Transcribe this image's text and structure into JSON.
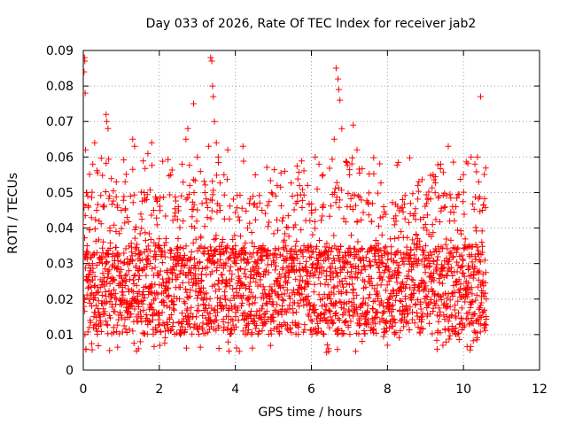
{
  "chart_data": {
    "type": "scatter",
    "title": "Day 033 of 2026, Rate Of TEC Index for receiver jab2",
    "xlabel": "GPS time / hours",
    "ylabel": "ROTI / TECUs",
    "xlim": [
      0,
      12
    ],
    "ylim": [
      0,
      0.09
    ],
    "x_ticks": [
      "0",
      "2",
      "4",
      "6",
      "8",
      "10",
      "12"
    ],
    "y_ticks": [
      "0",
      "0.01",
      "0.02",
      "0.03",
      "0.04",
      "0.05",
      "0.06",
      "0.07",
      "0.08",
      "0.09"
    ],
    "x_tick_values": [
      0,
      2,
      4,
      6,
      8,
      10,
      12
    ],
    "y_tick_values": [
      0,
      0.01,
      0.02,
      0.03,
      0.04,
      0.05,
      0.06,
      0.07,
      0.08,
      0.09
    ],
    "grid": true,
    "marker": "+",
    "color": "#ff0000",
    "series": [
      {
        "name": "ROTI",
        "points": [
          [
            0.0,
            0.041
          ],
          [
            0.02,
            0.084
          ],
          [
            0.03,
            0.088
          ],
          [
            0.04,
            0.087
          ],
          [
            0.05,
            0.078
          ],
          [
            0.06,
            0.062
          ],
          [
            0.08,
            0.05
          ],
          [
            0.1,
            0.035
          ],
          [
            0.12,
            0.025
          ],
          [
            0.15,
            0.02
          ],
          [
            0.18,
            0.028
          ],
          [
            0.22,
            0.018
          ],
          [
            0.25,
            0.058
          ],
          [
            0.3,
            0.064
          ],
          [
            0.35,
            0.045
          ],
          [
            0.4,
            0.022
          ],
          [
            0.45,
            0.015
          ],
          [
            0.5,
            0.03
          ],
          [
            0.55,
            0.026
          ],
          [
            0.6,
            0.072
          ],
          [
            0.62,
            0.07
          ],
          [
            0.65,
            0.068
          ],
          [
            0.7,
            0.04
          ],
          [
            0.75,
            0.021
          ],
          [
            0.8,
            0.012
          ],
          [
            0.9,
            0.032
          ],
          [
            1.0,
            0.045
          ],
          [
            1.1,
            0.053
          ],
          [
            1.2,
            0.028
          ],
          [
            1.3,
            0.065
          ],
          [
            1.35,
            0.063
          ],
          [
            1.4,
            0.015
          ],
          [
            1.45,
            0.006
          ],
          [
            1.5,
            0.008
          ],
          [
            1.6,
            0.05
          ],
          [
            1.7,
            0.061
          ],
          [
            1.8,
            0.064
          ],
          [
            1.85,
            0.045
          ],
          [
            1.9,
            0.012
          ],
          [
            2.0,
            0.024
          ],
          [
            2.2,
            0.018
          ],
          [
            2.3,
            0.055
          ],
          [
            2.5,
            0.03
          ],
          [
            2.6,
            0.058
          ],
          [
            2.7,
            0.065
          ],
          [
            2.75,
            0.068
          ],
          [
            2.8,
            0.052
          ],
          [
            2.9,
            0.075
          ],
          [
            3.0,
            0.06
          ],
          [
            3.1,
            0.025
          ],
          [
            3.2,
            0.05
          ],
          [
            3.3,
            0.063
          ],
          [
            3.35,
            0.088
          ],
          [
            3.38,
            0.087
          ],
          [
            3.4,
            0.08
          ],
          [
            3.42,
            0.077
          ],
          [
            3.45,
            0.07
          ],
          [
            3.5,
            0.064
          ],
          [
            3.55,
            0.06
          ],
          [
            3.6,
            0.045
          ],
          [
            3.7,
            0.055
          ],
          [
            3.8,
            0.062
          ],
          [
            3.9,
            0.018
          ],
          [
            4.0,
            0.035
          ],
          [
            4.2,
            0.063
          ],
          [
            4.3,
            0.015
          ],
          [
            4.5,
            0.028
          ],
          [
            4.7,
            0.045
          ],
          [
            4.9,
            0.02
          ],
          [
            5.1,
            0.052
          ],
          [
            5.3,
            0.056
          ],
          [
            5.5,
            0.049
          ],
          [
            5.7,
            0.03
          ],
          [
            5.9,
            0.052
          ],
          [
            6.0,
            0.045
          ],
          [
            6.1,
            0.06
          ],
          [
            6.2,
            0.058
          ],
          [
            6.3,
            0.055
          ],
          [
            6.4,
            0.005
          ],
          [
            6.45,
            0.006
          ],
          [
            6.5,
            0.015
          ],
          [
            6.6,
            0.065
          ],
          [
            6.65,
            0.085
          ],
          [
            6.7,
            0.082
          ],
          [
            6.72,
            0.079
          ],
          [
            6.75,
            0.076
          ],
          [
            6.8,
            0.068
          ],
          [
            6.9,
            0.03
          ],
          [
            7.0,
            0.055
          ],
          [
            7.1,
            0.069
          ],
          [
            7.2,
            0.062
          ],
          [
            7.3,
            0.018
          ],
          [
            7.5,
            0.025
          ],
          [
            7.7,
            0.035
          ],
          [
            7.9,
            0.046
          ],
          [
            8.0,
            0.007
          ],
          [
            8.2,
            0.028
          ],
          [
            8.4,
            0.048
          ],
          [
            8.6,
            0.044
          ],
          [
            8.8,
            0.052
          ],
          [
            9.0,
            0.041
          ],
          [
            9.2,
            0.055
          ],
          [
            9.4,
            0.058
          ],
          [
            9.6,
            0.063
          ],
          [
            9.8,
            0.046
          ],
          [
            10.0,
            0.055
          ],
          [
            10.2,
            0.06
          ],
          [
            10.3,
            0.058
          ],
          [
            10.4,
            0.053
          ],
          [
            10.45,
            0.077
          ],
          [
            10.5,
            0.045
          ],
          [
            10.55,
            0.013
          ],
          [
            10.6,
            0.02
          ]
        ],
        "dense_band": {
          "x_range": [
            0,
            10.6
          ],
          "typical_range": [
            0.01,
            0.035
          ],
          "min_value": 0.005,
          "max_value": 0.088
        }
      }
    ]
  }
}
